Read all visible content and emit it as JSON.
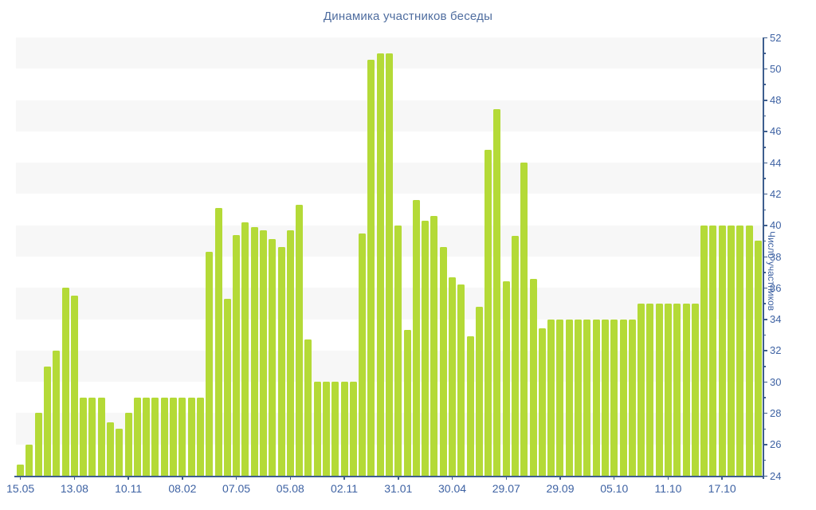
{
  "page": {
    "title": "Динамика участников беседы"
  },
  "colors": {
    "bar": "#b4da37",
    "axis_line": "#3e5e8e",
    "tick_label": "#3e62a3",
    "title_text": "#4f6d9f",
    "stripe": "#f7f7f7",
    "background": "#ffffff"
  },
  "chart_data": {
    "type": "bar",
    "title": "Динамика участников беседы",
    "xlabel": "",
    "ylabel": "Число участников",
    "ylim": [
      24,
      52
    ],
    "y_major_tick_step": 2,
    "y_minor_tick_step": 1,
    "y_tick_labels": [
      "24",
      "26",
      "28",
      "30",
      "32",
      "34",
      "36",
      "38",
      "40",
      "42",
      "44",
      "46",
      "48",
      "50",
      "52"
    ],
    "grid": "horizontal gray bands on even 2-unit intervals (26-28, 30-32, 34-36, 38-40, 42-44, 46-48, 50-52)",
    "legend": "none",
    "x_tick_label_every": 6,
    "x_tick_labels": [
      "15.05",
      "13.08",
      "10.11",
      "08.02",
      "07.05",
      "05.08",
      "02.11",
      "31.01",
      "30.04",
      "29.07",
      "29.09",
      "05.10",
      "11.10",
      "17.10"
    ],
    "values": [
      24.7,
      26,
      28,
      31,
      32,
      36,
      35.5,
      29,
      29,
      29,
      27.4,
      27,
      28,
      29,
      29,
      29,
      29,
      29,
      29,
      29,
      29,
      38.3,
      41.1,
      35.3,
      39.4,
      40.2,
      39.9,
      39.7,
      39.1,
      38.6,
      39.7,
      41.3,
      32.7,
      30,
      30,
      30,
      30,
      30,
      39.5,
      50.6,
      51,
      51,
      40,
      33.3,
      41.6,
      40.3,
      40.6,
      38.6,
      36.7,
      36.2,
      32.9,
      34.8,
      44.8,
      47.4,
      36.4,
      39.3,
      44,
      36.6,
      33.4,
      34,
      34,
      34,
      34,
      34,
      34,
      34,
      34,
      34,
      34,
      35,
      35,
      35,
      35,
      35,
      35,
      35,
      40,
      40,
      40,
      40,
      40,
      40,
      39
    ]
  }
}
